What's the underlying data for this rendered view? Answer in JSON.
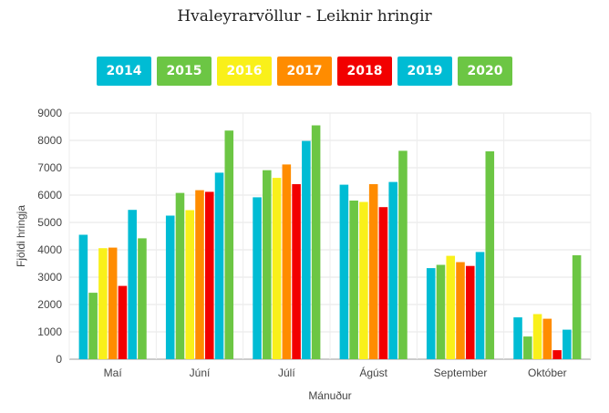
{
  "chart_data": {
    "type": "bar",
    "title": "Hvaleyrarvöllur - Leiknir hringir",
    "xlabel": "Mánuður",
    "ylabel": "Fjöldi hringja",
    "ylim": [
      0,
      9000
    ],
    "yticks": [
      "0",
      "1000",
      "2000",
      "3000",
      "4000",
      "5000",
      "6000",
      "7000",
      "8000",
      "9000"
    ],
    "grid": true,
    "legend_position": "top",
    "categories": [
      "Maí",
      "Júní",
      "Júlí",
      "Ágúst",
      "September",
      "Október"
    ],
    "series": [
      {
        "name": "2014",
        "color": "#00bcd4",
        "values": [
          4550,
          5250,
          5920,
          6380,
          3330,
          1530
        ]
      },
      {
        "name": "2015",
        "color": "#6cc644",
        "values": [
          2430,
          6080,
          6910,
          5800,
          3450,
          830
        ]
      },
      {
        "name": "2016",
        "color": "#f9f01a",
        "values": [
          4060,
          5450,
          6630,
          5750,
          3780,
          1650
        ]
      },
      {
        "name": "2017",
        "color": "#ff8c00",
        "values": [
          4080,
          6180,
          7120,
          6400,
          3550,
          1480
        ]
      },
      {
        "name": "2018",
        "color": "#f20000",
        "values": [
          2680,
          6120,
          6400,
          5560,
          3410,
          330
        ]
      },
      {
        "name": "2019",
        "color": "#00bcd4",
        "values": [
          5460,
          6820,
          7980,
          6480,
          3920,
          1080
        ]
      },
      {
        "name": "2020",
        "color": "#6cc644",
        "values": [
          4420,
          8360,
          8550,
          7620,
          7600,
          3800
        ]
      }
    ]
  }
}
